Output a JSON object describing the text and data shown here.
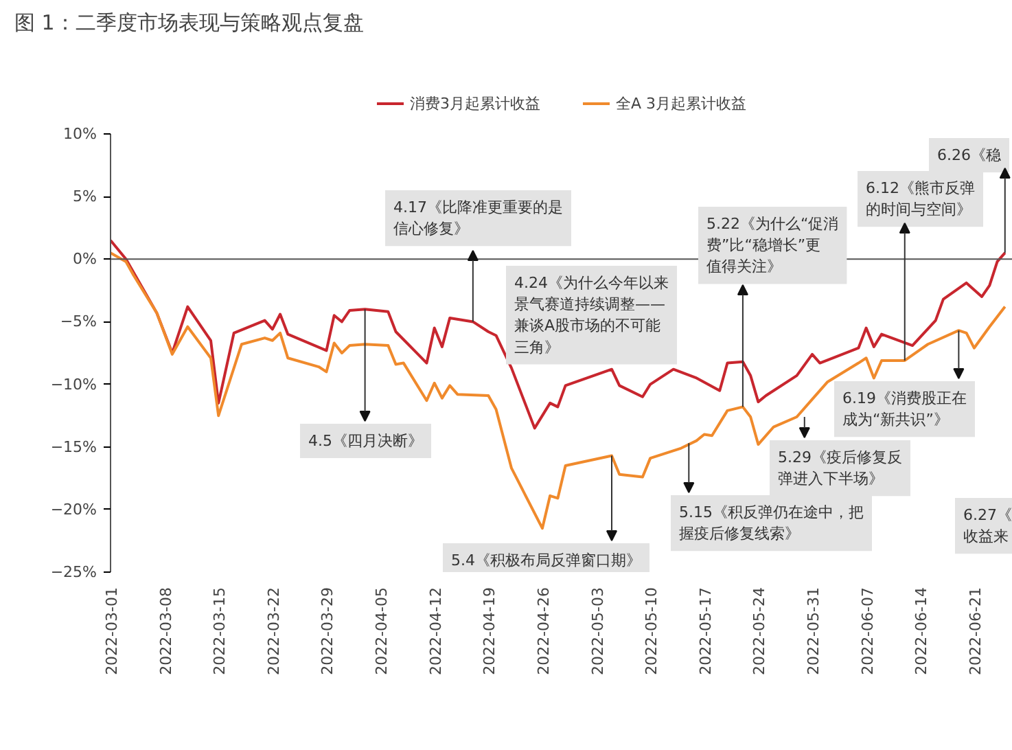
{
  "chart_data": {
    "type": "line",
    "title": "图 1：二季度市场表现与策略观点复盘",
    "legend": "top",
    "xlim": [
      "2022-03-01",
      "2022-06-26"
    ],
    "xticks": [
      "2022-03-01",
      "2022-03-08",
      "2022-03-15",
      "2022-03-22",
      "2022-03-29",
      "2022-04-05",
      "2022-04-12",
      "2022-04-19",
      "2022-04-26",
      "2022-05-03",
      "2022-05-10",
      "2022-05-17",
      "2022-05-24",
      "2022-05-31",
      "2022-06-07",
      "2022-06-14",
      "2022-06-21"
    ],
    "ylim": [
      -25,
      10
    ],
    "yticks": [
      {
        "value": -25,
        "label": "−25%"
      },
      {
        "value": -20,
        "label": "−20%"
      },
      {
        "value": -15,
        "label": "−15%"
      },
      {
        "value": -10,
        "label": "−10%"
      },
      {
        "value": -5,
        "label": "−5%"
      },
      {
        "value": 0,
        "label": "0%"
      },
      {
        "value": 5,
        "label": "5%"
      },
      {
        "value": 10,
        "label": "10%"
      }
    ],
    "series": [
      {
        "name": "消费3月起累计收益",
        "color": "#c8262e",
        "x": [
          "2022-03-01",
          "2022-03-03",
          "2022-03-07",
          "2022-03-09",
          "2022-03-11",
          "2022-03-14",
          "2022-03-15",
          "2022-03-17",
          "2022-03-21",
          "2022-03-22",
          "2022-03-23",
          "2022-03-24",
          "2022-03-29",
          "2022-03-30",
          "2022-03-31",
          "2022-04-01",
          "2022-04-03",
          "2022-04-06",
          "2022-04-07",
          "2022-04-11",
          "2022-04-12",
          "2022-04-13",
          "2022-04-14",
          "2022-04-17",
          "2022-04-19",
          "2022-04-20",
          "2022-04-22",
          "2022-04-25",
          "2022-04-27",
          "2022-04-28",
          "2022-04-29",
          "2022-05-05",
          "2022-05-06",
          "2022-05-09",
          "2022-05-10",
          "2022-05-13",
          "2022-05-16",
          "2022-05-19",
          "2022-05-20",
          "2022-05-22",
          "2022-05-23",
          "2022-05-24",
          "2022-05-25",
          "2022-05-29",
          "2022-05-31",
          "2022-06-01",
          "2022-06-06",
          "2022-06-07",
          "2022-06-08",
          "2022-06-09",
          "2022-06-13",
          "2022-06-16",
          "2022-06-17",
          "2022-06-20",
          "2022-06-22",
          "2022-06-23",
          "2022-06-24",
          "2022-06-25"
        ],
        "values": [
          1.5,
          0,
          -4.3,
          -7.5,
          -3.8,
          -6.5,
          -11.5,
          -5.9,
          -4.9,
          -5.6,
          -4.4,
          -6,
          -7.3,
          -4.5,
          -5,
          -4.1,
          -4,
          -4.2,
          -5.8,
          -8.3,
          -5.5,
          -7,
          -4.7,
          -5,
          -5.8,
          -6.1,
          -8.7,
          -13.5,
          -11.5,
          -11.8,
          -10.1,
          -8.8,
          -10.1,
          -11,
          -10,
          -8.8,
          -9.5,
          -10.5,
          -8.3,
          -8.2,
          -9.3,
          -11.4,
          -10.9,
          -9.3,
          -7.6,
          -8.3,
          -7.1,
          -5.5,
          -7,
          -6,
          -6.9,
          -4.9,
          -3.2,
          -1.9,
          -3,
          -2.1,
          -0.2,
          0.5
        ]
      },
      {
        "name": "全A 3月起累计收益",
        "color": "#f08a2c",
        "x": [
          "2022-03-01",
          "2022-03-03",
          "2022-03-04",
          "2022-03-07",
          "2022-03-09",
          "2022-03-11",
          "2022-03-14",
          "2022-03-15",
          "2022-03-18",
          "2022-03-21",
          "2022-03-22",
          "2022-03-23",
          "2022-03-24",
          "2022-03-28",
          "2022-03-29",
          "2022-03-30",
          "2022-03-31",
          "2022-04-01",
          "2022-04-03",
          "2022-04-06",
          "2022-04-07",
          "2022-04-08",
          "2022-04-11",
          "2022-04-12",
          "2022-04-13",
          "2022-04-14",
          "2022-04-15",
          "2022-04-19",
          "2022-04-20",
          "2022-04-22",
          "2022-04-26",
          "2022-04-27",
          "2022-04-28",
          "2022-04-29",
          "2022-05-05",
          "2022-05-06",
          "2022-05-09",
          "2022-05-10",
          "2022-05-14",
          "2022-05-16",
          "2022-05-17",
          "2022-05-18",
          "2022-05-20",
          "2022-05-22",
          "2022-05-23",
          "2022-05-24",
          "2022-05-26",
          "2022-05-29",
          "2022-05-31",
          "2022-06-02",
          "2022-06-06",
          "2022-06-07",
          "2022-06-08",
          "2022-06-09",
          "2022-06-12",
          "2022-06-15",
          "2022-06-19",
          "2022-06-20",
          "2022-06-21",
          "2022-06-23",
          "2022-06-25"
        ],
        "values": [
          0.5,
          -0.2,
          -1.3,
          -4.3,
          -7.6,
          -5.4,
          -7.9,
          -12.5,
          -6.8,
          -6.3,
          -6.5,
          -5.9,
          -7.9,
          -8.6,
          -9,
          -6.7,
          -7.5,
          -6.9,
          -6.8,
          -6.9,
          -8.4,
          -8.3,
          -11.3,
          -9.9,
          -11.1,
          -10.1,
          -10.8,
          -10.9,
          -12,
          -16.7,
          -21.5,
          -18.9,
          -19.1,
          -16.5,
          -15.7,
          -17.2,
          -17.4,
          -15.9,
          -15.1,
          -14.5,
          -14,
          -14.1,
          -12.1,
          -11.8,
          -12.6,
          -14.8,
          -13.4,
          -12.6,
          -11.2,
          -9.8,
          -8.3,
          -7.9,
          -9.5,
          -8.1,
          -8.1,
          -6.8,
          -5.7,
          -5.9,
          -7.1,
          -5.4,
          -3.8
        ]
      }
    ],
    "annotations": [
      {
        "text": "4.17《比降准更重要的是信心修复》",
        "x": "2022-04-17",
        "y": -5.0
      },
      "4.24《为什么今年以来景气赛道持续调整——兼谈A股市场的不可能三角》",
      {
        "text": "4.5《四月决断》",
        "x": "2022-04-03",
        "y": -4.0
      },
      {
        "text": "5.4《积极布局反弹窗口期》",
        "x": "2022-05-05",
        "y": -15.7
      },
      {
        "text": "5.15《积反弹仍在途中，把握疫后修复线索》",
        "x": "2022-05-15",
        "y": -14.7
      },
      {
        "text": "5.22《为什么“促消费”比“稳增长”更值得关注》",
        "x": "2022-05-22",
        "y": -11.8
      },
      {
        "text": "5.29《疫后修复反弹进入下半场》",
        "x": "2022-05-30",
        "y": -12.6
      },
      {
        "text": "6.12《熊市反弹的时间与空间》",
        "x": "2022-06-12",
        "y": -8.1
      },
      {
        "text": "6.19《消费股正在成为“新共识”》",
        "x": "2022-06-19",
        "y": -5.7
      },
      {
        "text": "6.26《稳",
        "x": "2022-06-25",
        "y": 0.5
      },
      "6.27《收益来"
    ]
  }
}
